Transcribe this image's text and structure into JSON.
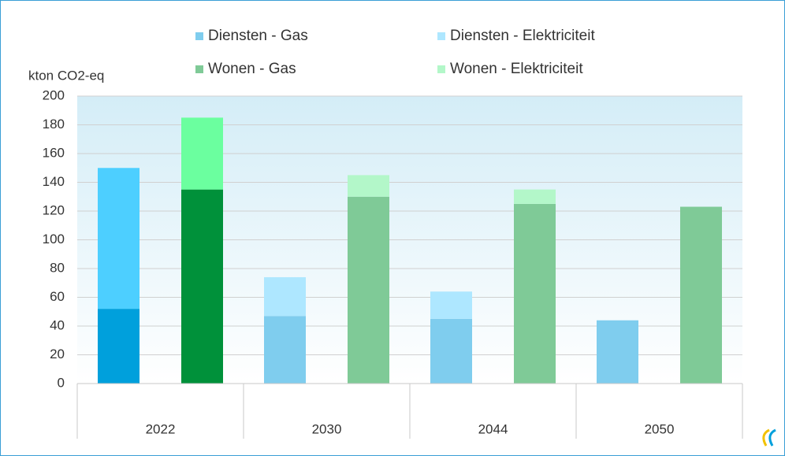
{
  "chart_data": {
    "type": "bar",
    "stacked": true,
    "y_label": "kton CO2-eq",
    "categories": [
      "2022",
      "2030",
      "2044",
      "2050"
    ],
    "series": [
      {
        "name": "Diensten - Gas",
        "group": "Diensten",
        "color": "#7fcdee",
        "colors": [
          "#00a0dc",
          "#7fcdee",
          "#7fcdee",
          "#7fcdee"
        ],
        "values": [
          52,
          47,
          45,
          44
        ]
      },
      {
        "name": "Diensten - Elektriciteit",
        "group": "Diensten",
        "color": "#aee7ff",
        "colors": [
          "#4dcfff",
          "#aee7ff",
          "#aee7ff",
          "#aee7ff"
        ],
        "values": [
          98,
          27,
          19,
          0
        ]
      },
      {
        "name": "Wonen - Gas",
        "group": "Wonen",
        "color": "#7fca97",
        "colors": [
          "#00913a",
          "#7fca97",
          "#7fca97",
          "#7fca97"
        ],
        "values": [
          135,
          130,
          125,
          123
        ]
      },
      {
        "name": "Wonen - Elektriciteit",
        "group": "Wonen",
        "color": "#b3f7c9",
        "colors": [
          "#6bff9f",
          "#b3f7c9",
          "#b3f7c9",
          "#b3f7c9"
        ],
        "values": [
          50,
          15,
          10,
          0
        ]
      }
    ],
    "ylim": [
      0,
      200
    ],
    "yticks": [
      0,
      20,
      40,
      60,
      80,
      100,
      120,
      140,
      160,
      180,
      200
    ],
    "grid": true
  }
}
